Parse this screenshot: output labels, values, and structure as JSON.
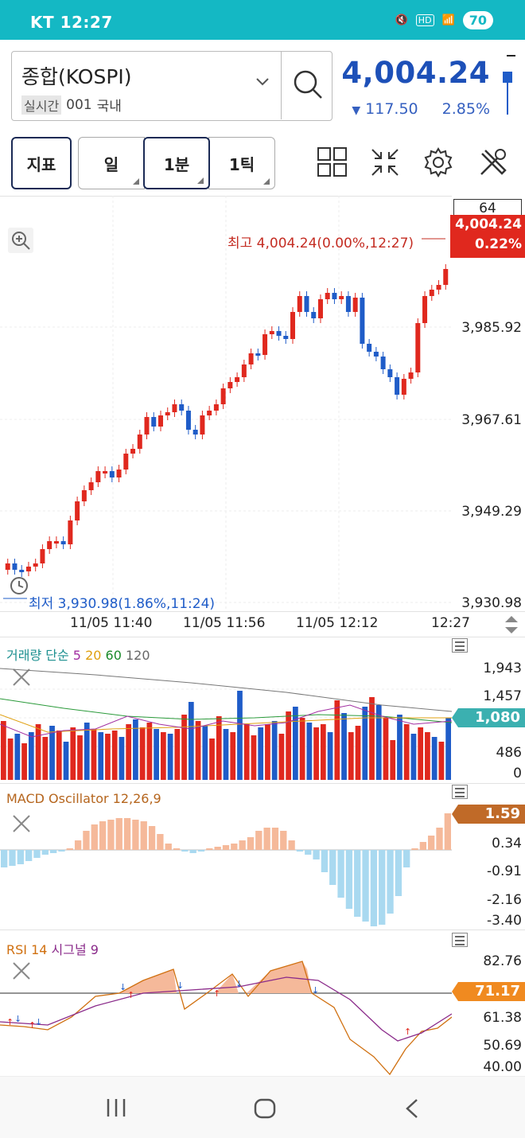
{
  "status": {
    "carrier_time": "KT 12:27",
    "battery": "70"
  },
  "stock": {
    "name": "종합(KOSPI)",
    "realtime": "실시간",
    "code": "001",
    "market": "국내",
    "price": "4,004.24",
    "change": "117.50",
    "pct": "2.85%"
  },
  "toolbar": {
    "indicator": "지표",
    "day": "일",
    "minute": "1분",
    "tick": "1틱"
  },
  "chart": {
    "count": "64",
    "high_label": "최고 4,004.24(0.00%,12:27)",
    "low_label": "최저 3,930.98(1.86%,11:24)",
    "cur_price": "4,004.24",
    "cur_pct": "0.22%",
    "y_labels": [
      "3,985.92",
      "3,967.61",
      "3,949.29",
      "3,930.98"
    ],
    "x_labels": [
      "11/05 11:40",
      "11/05 11:56",
      "11/05 12:12",
      "12:27"
    ]
  },
  "volume": {
    "title_a": "거래량 단순",
    "ma5": "5",
    "ma20": "20",
    "ma60": "60",
    "ma120": "120",
    "y_labels": [
      "1,943",
      "1,457",
      "486",
      "0"
    ],
    "current": "1,080"
  },
  "macd": {
    "title": "MACD Oscillator 12,26,9",
    "y_labels": [
      "0.34",
      "-0.91",
      "-2.16",
      "-3.40"
    ],
    "current": "1.59"
  },
  "rsi": {
    "title_a": "RSI 14",
    "title_b": "시그널 9",
    "y_labels": [
      "82.76",
      "61.38",
      "50.69",
      "40.00"
    ],
    "current": "71.17"
  },
  "colors": {
    "up": "#e0281e",
    "down": "#1f5cc8",
    "teal": "#14b8c4",
    "macd_pos": "#f5b99a",
    "macd_neg": "#a9d9f0"
  }
}
